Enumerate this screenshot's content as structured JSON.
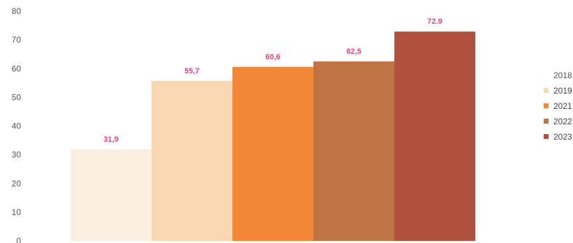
{
  "chart_data": {
    "type": "bar",
    "categories": [
      "2018",
      "2019",
      "2021",
      "2022",
      "2023"
    ],
    "values": [
      31.9,
      55.7,
      60.6,
      62.5,
      72.9
    ],
    "data_labels": [
      "31,9",
      "55,7",
      "60,6",
      "62,5",
      "72.9"
    ],
    "colors": [
      "#fbefe2",
      "#f9d7b2",
      "#f2873a",
      "#bf7446",
      "#b0523e"
    ],
    "label_color": "#e8457a",
    "title": "",
    "xlabel": "",
    "ylabel": "",
    "ylim": [
      0,
      80
    ],
    "yticks": [
      "0",
      "10",
      "20",
      "30",
      "40",
      "50",
      "60",
      "70",
      "80"
    ],
    "yticks_values": [
      0,
      10,
      20,
      30,
      40,
      50,
      60,
      70,
      80
    ],
    "grid": false,
    "legend": {
      "placement": "right",
      "title": "2018",
      "entries": [
        "2019",
        "2021",
        "2022",
        "2023"
      ],
      "colors": [
        "#f9d7b2",
        "#f2873a",
        "#bf7446",
        "#b0523e"
      ]
    }
  }
}
